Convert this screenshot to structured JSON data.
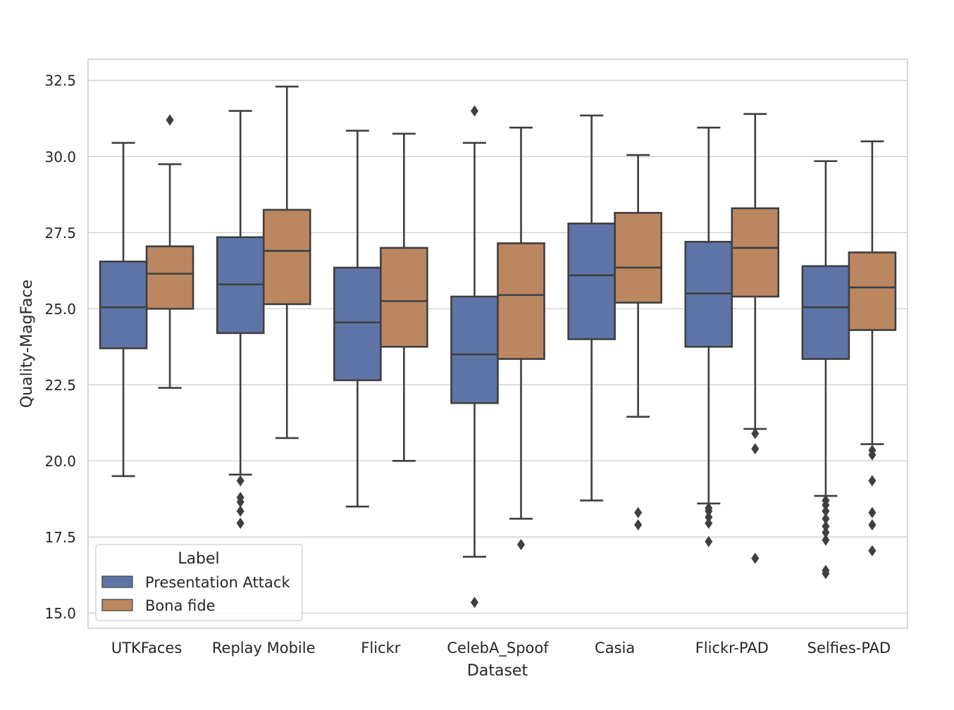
{
  "chart_data": {
    "type": "boxplot",
    "xlabel": "Dataset",
    "ylabel": "Quality-MagFace",
    "ylim": [
      14.5,
      33.2
    ],
    "yticks": [
      "15.0",
      "17.5",
      "20.0",
      "22.5",
      "25.0",
      "27.5",
      "30.0",
      "32.5"
    ],
    "ytick_values": [
      15.0,
      17.5,
      20.0,
      22.5,
      25.0,
      27.5,
      30.0,
      32.5
    ],
    "grid": true,
    "legend": {
      "title": "Label",
      "placement": "bottom-left",
      "entries": [
        "Presentation Attack",
        "Bona fide"
      ]
    },
    "colors": {
      "Presentation Attack": "#5f74a6",
      "Bona fide": "#bb8761",
      "line": "#3f3f3f",
      "grid": "#d0d0d0"
    },
    "categories": [
      "UTKFaces",
      "Replay Mobile",
      "Flickr",
      "CelebA_Spoof",
      "Casia",
      "Flickr-PAD",
      "Selfies-PAD"
    ],
    "series": [
      {
        "name": "Presentation Attack",
        "boxes": [
          {
            "whislo": 19.5,
            "q1": 23.7,
            "med": 25.05,
            "q3": 26.55,
            "whishi": 30.45,
            "fliers": []
          },
          {
            "whislo": 19.55,
            "q1": 24.2,
            "med": 25.8,
            "q3": 27.35,
            "whishi": 31.5,
            "fliers": [
              19.35,
              18.8,
              18.65,
              18.35,
              17.95
            ]
          },
          {
            "whislo": 18.5,
            "q1": 22.65,
            "med": 24.55,
            "q3": 26.35,
            "whishi": 30.85,
            "fliers": []
          },
          {
            "whislo": 16.85,
            "q1": 21.9,
            "med": 23.5,
            "q3": 25.4,
            "whishi": 30.45,
            "fliers": [
              31.5,
              15.35
            ]
          },
          {
            "whislo": 18.7,
            "q1": 24.0,
            "med": 26.1,
            "q3": 27.8,
            "whishi": 31.35,
            "fliers": []
          },
          {
            "whislo": 18.6,
            "q1": 23.75,
            "med": 25.5,
            "q3": 27.2,
            "whishi": 30.95,
            "fliers": [
              18.45,
              18.35,
              18.15,
              17.95,
              17.35
            ]
          },
          {
            "whislo": 18.85,
            "q1": 23.35,
            "med": 25.05,
            "q3": 26.4,
            "whishi": 29.85,
            "fliers": [
              18.7,
              18.55,
              18.35,
              18.1,
              17.85,
              17.65,
              17.4,
              16.4,
              16.3
            ]
          }
        ]
      },
      {
        "name": "Bona fide",
        "boxes": [
          {
            "whislo": 22.4,
            "q1": 25.0,
            "med": 26.15,
            "q3": 27.05,
            "whishi": 29.75,
            "fliers": [
              31.2
            ]
          },
          {
            "whislo": 20.75,
            "q1": 25.15,
            "med": 26.9,
            "q3": 28.25,
            "whishi": 32.3,
            "fliers": []
          },
          {
            "whislo": 20.0,
            "q1": 23.75,
            "med": 25.25,
            "q3": 27.0,
            "whishi": 30.75,
            "fliers": []
          },
          {
            "whislo": 18.1,
            "q1": 23.35,
            "med": 25.45,
            "q3": 27.15,
            "whishi": 30.95,
            "fliers": [
              17.25
            ]
          },
          {
            "whislo": 21.45,
            "q1": 25.2,
            "med": 26.35,
            "q3": 28.15,
            "whishi": 30.05,
            "fliers": [
              18.3,
              17.9
            ]
          },
          {
            "whislo": 21.05,
            "q1": 25.4,
            "med": 27.0,
            "q3": 28.3,
            "whishi": 31.4,
            "fliers": [
              20.9,
              20.4,
              16.8
            ]
          },
          {
            "whislo": 20.55,
            "q1": 24.3,
            "med": 25.7,
            "q3": 26.85,
            "whishi": 30.5,
            "fliers": [
              20.35,
              20.2,
              19.35,
              18.3,
              17.9,
              17.05
            ]
          }
        ]
      }
    ]
  }
}
